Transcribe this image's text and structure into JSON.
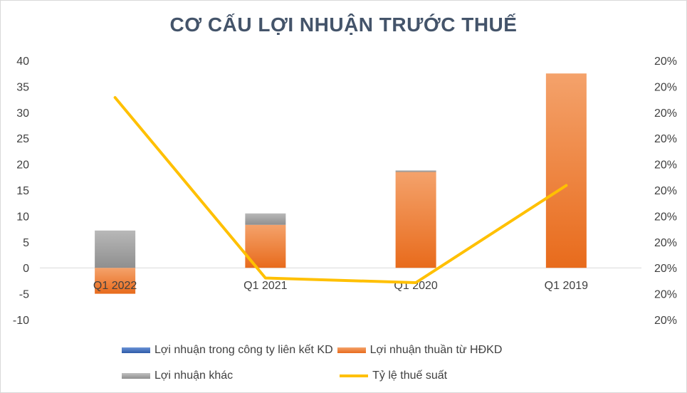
{
  "chart_data": {
    "type": "bar",
    "stacked": true,
    "title": "CƠ CẤU LỢI NHUẬN TRƯỚC THUẾ",
    "categories": [
      "Q1 2022",
      "Q1 2021",
      "Q1 2020",
      "Q1 2019"
    ],
    "series": [
      {
        "name": "Lợi nhuận trong công ty liên kết KD",
        "color": "#4472c4",
        "values": [
          0,
          0,
          0,
          0
        ]
      },
      {
        "name": "Lợi nhuận thuần từ HĐKD",
        "color": "#ed7d31",
        "values": [
          -5,
          8.3,
          18.5,
          37.5
        ]
      },
      {
        "name": "Lợi nhuận khác",
        "color": "#a5a5a5",
        "values": [
          7.2,
          2.2,
          0.3,
          0
        ]
      },
      {
        "name": "Tỷ lệ thuế suất",
        "type": "line",
        "axis": "secondary",
        "color": "#ffc000",
        "values": [
          0.2034,
          0.1995,
          0.1994,
          0.2015
        ]
      }
    ],
    "ylim": [
      -10,
      40
    ],
    "yticks": [
      "40",
      "35",
      "30",
      "25",
      "20",
      "15",
      "10",
      "5",
      "0",
      "-5",
      "-10"
    ],
    "y2lim": [
      0.1986,
      0.2042
    ],
    "y2ticks": [
      "20%",
      "20%",
      "20%",
      "20%",
      "20%",
      "20%",
      "20%",
      "20%",
      "20%",
      "20%",
      "20%"
    ],
    "grid": false,
    "legend_position": "bottom"
  }
}
